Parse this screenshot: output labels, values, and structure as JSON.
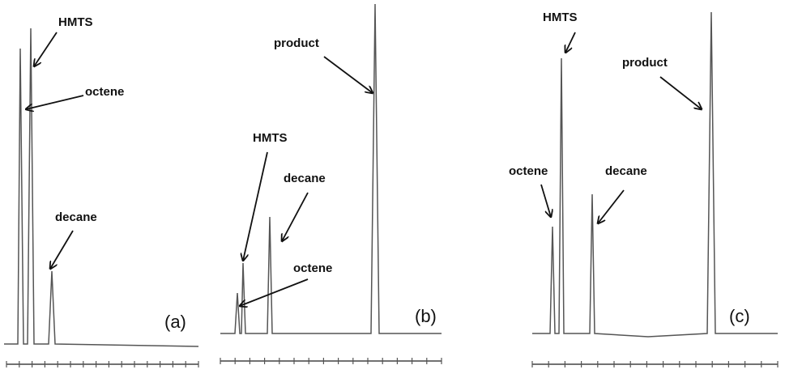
{
  "panels": [
    {
      "label": "(a)",
      "annotations": [
        "HMTS",
        "octene",
        "decane"
      ]
    },
    {
      "label": "(b)",
      "annotations": [
        "product",
        "HMTS",
        "decane",
        "octene"
      ]
    },
    {
      "label": "(c)",
      "annotations": [
        "HMTS",
        "product",
        "octene",
        "decane"
      ]
    }
  ]
}
